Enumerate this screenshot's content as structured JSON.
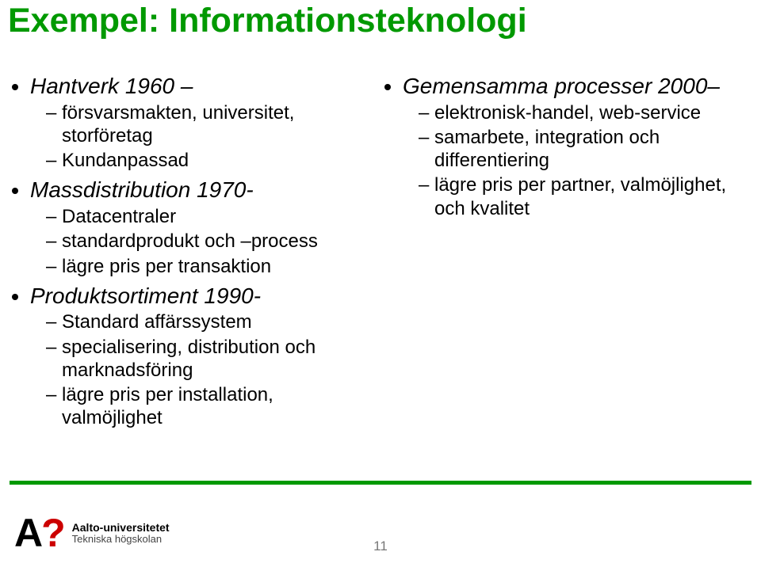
{
  "title": "Exempel: Informationsteknologi",
  "left": {
    "b1": {
      "head": "Hantverk 1960 –",
      "s1": "försvarsmakten, universitet, storföretag",
      "s2": "Kundanpassad"
    },
    "b2": {
      "head": "Massdistribution 1970-",
      "s1": "Datacentraler",
      "s2": "standardprodukt och –process",
      "s3": "lägre pris per transaktion"
    },
    "b3": {
      "head": "Produktsortiment 1990-",
      "s1": "Standard affärssystem",
      "s2": "specialisering, distribution och marknadsföring",
      "s3": "lägre pris per installation, valmöjlighet"
    }
  },
  "right": {
    "b1": {
      "head": "Gemensamma processer 2000–",
      "s1": "elektronisk-handel, web-service",
      "s2": "samarbete, integration och differentiering",
      "s3": "lägre pris per partner, valmöjlighet, och kvalitet"
    }
  },
  "footer": {
    "logo_mark_a": "A",
    "logo_mark_q": "?",
    "logo_line1": "Aalto-universitetet",
    "logo_line2": "Tekniska högskolan",
    "page": "11"
  },
  "colors": {
    "accent": "#009900",
    "text": "#000000",
    "logo_accent": "#cc0000",
    "page_num": "#777777"
  }
}
